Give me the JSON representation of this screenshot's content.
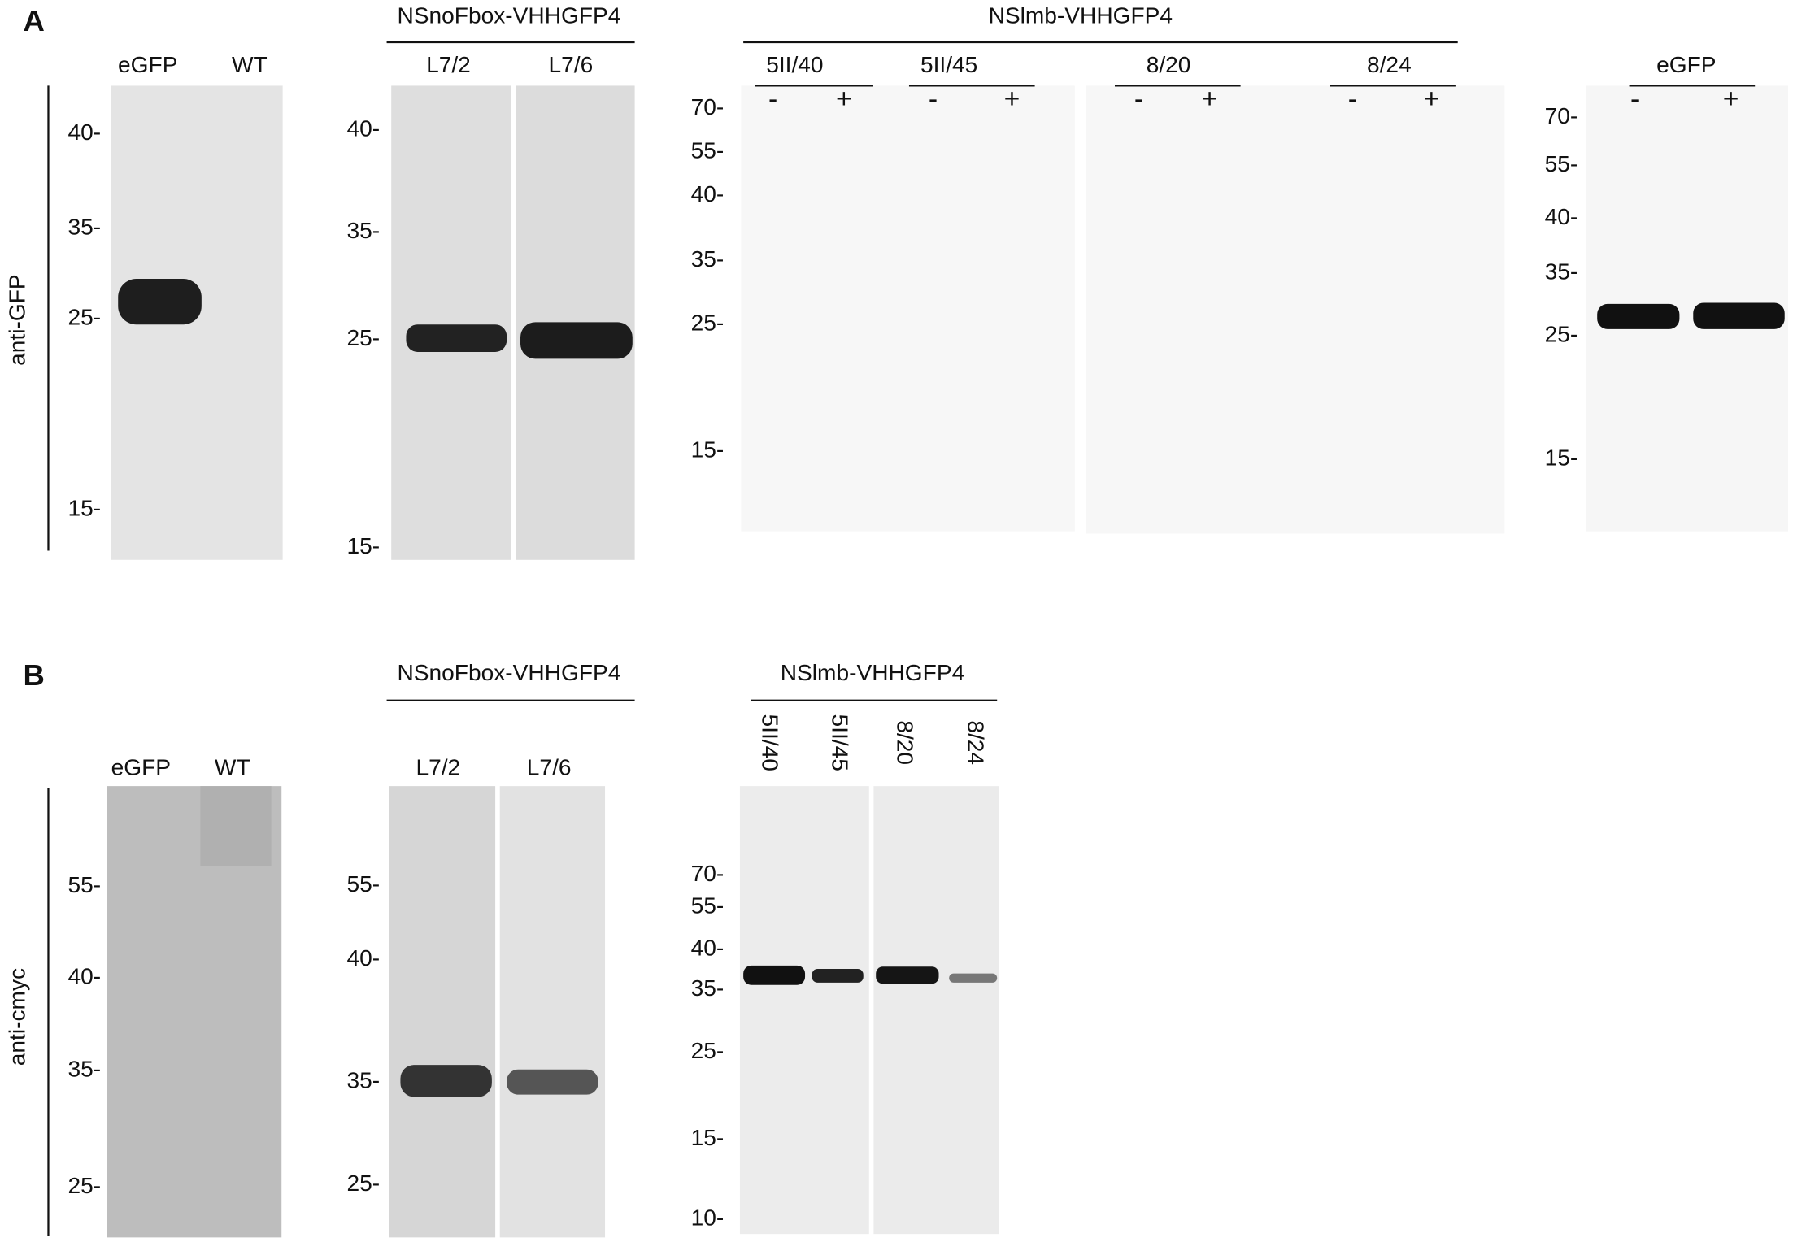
{
  "panel_a": {
    "label": "A",
    "antibody": "anti-GFP",
    "blot_1": {
      "lanes": [
        "eGFP",
        "WT"
      ],
      "markers": [
        "40-",
        "35-",
        "25-",
        "15-"
      ]
    },
    "blot_2": {
      "title": "NSnoFbox-VHHGFP4",
      "lanes": [
        "L7/2",
        "L7/6"
      ],
      "markers": [
        "40-",
        "35-",
        "25-",
        "15-"
      ]
    },
    "blot_3": {
      "title": "NSlmb-VHHGFP4",
      "lanes": [
        "5II/40",
        "5II/45",
        "8/20",
        "8/24"
      ],
      "treatments": [
        "-",
        "+"
      ],
      "markers": [
        "70-",
        "55-",
        "40-",
        "35-",
        "25-",
        "15-"
      ]
    },
    "blot_4": {
      "title": "eGFP",
      "treatments": [
        "-",
        "+"
      ],
      "markers": [
        "70-",
        "55-",
        "40-",
        "35-",
        "25-",
        "15-"
      ]
    }
  },
  "panel_b": {
    "label": "B",
    "antibody": "anti-cmyc",
    "blot_1": {
      "lanes": [
        "eGFP",
        "WT"
      ],
      "markers": [
        "55-",
        "40-",
        "35-",
        "25-"
      ]
    },
    "blot_2": {
      "title": "NSnoFbox-VHHGFP4",
      "lanes": [
        "L7/2",
        "L7/6"
      ],
      "markers": [
        "55-",
        "40-",
        "35-",
        "25-"
      ]
    },
    "blot_3": {
      "title": "NSlmb-VHHGFP4",
      "lanes": [
        "5II/40",
        "5II/45",
        "8/20",
        "8/24"
      ],
      "markers": [
        "70-",
        "55-",
        "40-",
        "35-",
        "25-",
        "15-",
        "10-"
      ]
    }
  }
}
